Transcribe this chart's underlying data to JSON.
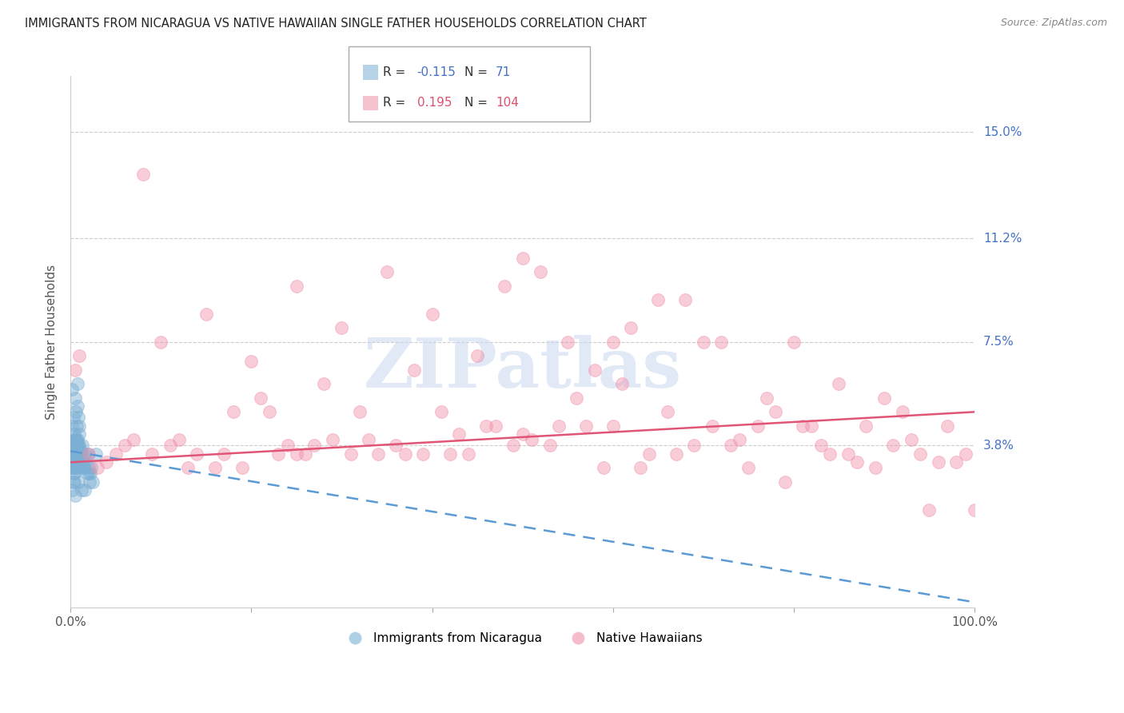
{
  "title": "IMMIGRANTS FROM NICARAGUA VS NATIVE HAWAIIAN SINGLE FATHER HOUSEHOLDS CORRELATION CHART",
  "source": "Source: ZipAtlas.com",
  "ylabel": "Single Father Households",
  "xlim": [
    0.0,
    100.0
  ],
  "ylim": [
    -2.0,
    17.0
  ],
  "ytick_positions": [
    3.8,
    7.5,
    11.2,
    15.0
  ],
  "ytick_labels": [
    "3.8%",
    "7.5%",
    "11.2%",
    "15.0%"
  ],
  "blue_color": "#7bafd4",
  "pink_color": "#f090aa",
  "blue_label": "Immigrants from Nicaragua",
  "pink_label": "Native Hawaiians",
  "blue_R": -0.115,
  "blue_N": 71,
  "pink_R": 0.195,
  "pink_N": 104,
  "watermark": "ZIPatlas",
  "blue_trend": [
    3.6,
    -1.8
  ],
  "pink_trend": [
    3.2,
    5.0
  ],
  "blue_scatter_x": [
    0.1,
    0.15,
    0.2,
    0.25,
    0.3,
    0.3,
    0.35,
    0.4,
    0.4,
    0.45,
    0.5,
    0.5,
    0.55,
    0.6,
    0.6,
    0.65,
    0.7,
    0.7,
    0.75,
    0.8,
    0.8,
    0.85,
    0.9,
    0.95,
    1.0,
    1.0,
    1.1,
    1.2,
    1.3,
    1.4,
    1.5,
    1.6,
    1.7,
    1.8,
    1.9,
    2.0,
    2.1,
    2.2,
    2.3,
    2.5,
    0.2,
    0.3,
    0.4,
    0.5,
    0.6,
    0.7,
    0.8,
    0.9,
    1.0,
    1.2,
    0.15,
    0.25,
    0.35,
    0.45,
    0.55,
    0.65,
    0.75,
    0.85,
    0.95,
    1.5,
    2.0,
    2.8,
    1.3,
    0.4,
    0.6,
    0.8,
    1.1,
    1.6,
    0.3,
    0.5,
    0.7
  ],
  "blue_scatter_y": [
    3.8,
    4.5,
    3.5,
    4.0,
    3.2,
    4.8,
    3.6,
    3.0,
    4.2,
    3.8,
    5.5,
    3.3,
    4.0,
    3.5,
    5.0,
    3.8,
    4.5,
    3.2,
    3.6,
    6.0,
    3.4,
    4.8,
    3.8,
    3.5,
    3.0,
    4.2,
    3.6,
    3.2,
    3.8,
    3.4,
    3.0,
    3.5,
    3.2,
    2.8,
    3.5,
    3.0,
    2.5,
    2.8,
    3.0,
    2.5,
    2.2,
    3.5,
    2.8,
    2.0,
    3.0,
    4.0,
    3.5,
    2.5,
    3.8,
    2.2,
    5.8,
    3.0,
    3.5,
    2.8,
    4.0,
    3.2,
    5.2,
    3.8,
    4.5,
    3.0,
    2.8,
    3.5,
    3.2,
    2.5,
    3.0,
    4.0,
    3.5,
    2.2,
    2.5,
    3.0,
    3.5
  ],
  "pink_scatter_x": [
    0.5,
    1.0,
    2.0,
    3.0,
    4.0,
    5.0,
    6.0,
    7.0,
    8.0,
    9.0,
    10.0,
    12.0,
    14.0,
    15.0,
    16.0,
    17.0,
    18.0,
    19.0,
    20.0,
    21.0,
    22.0,
    23.0,
    24.0,
    25.0,
    26.0,
    27.0,
    28.0,
    29.0,
    30.0,
    31.0,
    32.0,
    33.0,
    34.0,
    35.0,
    36.0,
    37.0,
    38.0,
    39.0,
    40.0,
    41.0,
    42.0,
    43.0,
    44.0,
    45.0,
    46.0,
    47.0,
    48.0,
    49.0,
    50.0,
    51.0,
    52.0,
    53.0,
    54.0,
    55.0,
    56.0,
    57.0,
    58.0,
    59.0,
    60.0,
    61.0,
    62.0,
    63.0,
    64.0,
    65.0,
    66.0,
    67.0,
    68.0,
    70.0,
    71.0,
    72.0,
    75.0,
    76.0,
    77.0,
    78.0,
    80.0,
    81.0,
    82.0,
    83.0,
    84.0,
    85.0,
    86.0,
    87.0,
    88.0,
    89.0,
    90.0,
    91.0,
    92.0,
    93.0,
    94.0,
    95.0,
    96.0,
    97.0,
    98.0,
    99.0,
    100.0,
    11.0,
    13.0,
    69.0,
    73.0,
    79.0,
    74.0,
    50.0,
    25.0,
    60.0
  ],
  "pink_scatter_y": [
    6.5,
    7.0,
    3.5,
    3.0,
    3.2,
    3.5,
    3.8,
    4.0,
    13.5,
    3.5,
    7.5,
    4.0,
    3.5,
    8.5,
    3.0,
    3.5,
    5.0,
    3.0,
    6.8,
    5.5,
    5.0,
    3.5,
    3.8,
    9.5,
    3.5,
    3.8,
    6.0,
    4.0,
    8.0,
    3.5,
    5.0,
    4.0,
    3.5,
    10.0,
    3.8,
    3.5,
    6.5,
    3.5,
    8.5,
    5.0,
    3.5,
    4.2,
    3.5,
    7.0,
    4.5,
    4.5,
    9.5,
    3.8,
    10.5,
    4.0,
    10.0,
    3.8,
    4.5,
    7.5,
    5.5,
    4.5,
    6.5,
    3.0,
    7.5,
    6.0,
    8.0,
    3.0,
    3.5,
    9.0,
    5.0,
    3.5,
    9.0,
    7.5,
    4.5,
    7.5,
    3.0,
    4.5,
    5.5,
    5.0,
    7.5,
    4.5,
    4.5,
    3.8,
    3.5,
    6.0,
    3.5,
    3.2,
    4.5,
    3.0,
    5.5,
    3.8,
    5.0,
    4.0,
    3.5,
    1.5,
    3.2,
    4.5,
    3.2,
    3.5,
    1.5,
    3.8,
    3.0,
    3.8,
    3.8,
    2.5,
    4.0,
    4.2,
    3.5,
    4.5
  ]
}
